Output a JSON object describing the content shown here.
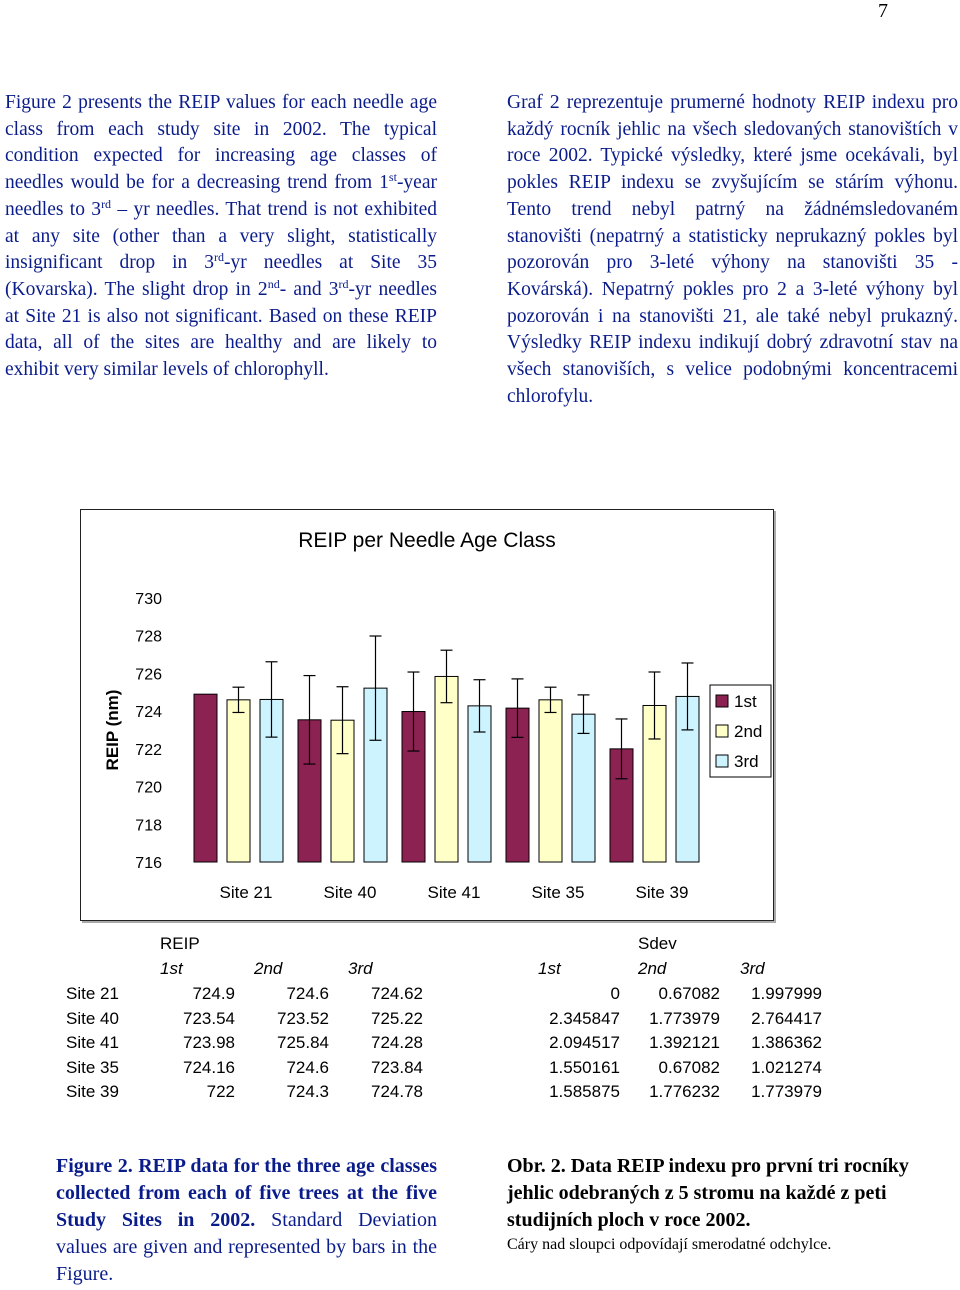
{
  "page_number": "7",
  "english_text": {
    "p1": "Figure 2 presents the REIP values for each needle age class from each study site in 2002. The typical condition expected for increasing age classes of needles would be for a decreasing trend from 1",
    "sup1": "st",
    "p2": "-year needles to 3",
    "sup2": "rd",
    "p3": " – yr needles. That trend is not exhibited at any site (other than a very slight, statistically insignificant drop in 3",
    "sup3": "rd",
    "p4": "-yr needles at Site 35 (Kovarska). The slight drop in 2",
    "sup4": "nd",
    "p5": "- and 3",
    "sup5": "rd",
    "p6": "-yr needles at Site 21 is also not significant. Based on these REIP data, all of the sites are healthy and are likely to exhibit very similar levels of chlorophyll."
  },
  "czech_text": "Graf 2 reprezentuje prumerné hodnoty REIP indexu pro každý rocník jehlic na všech sledovaných stanovištích v roce 2002. Typické výsledky, které jsme ocekávali, byl pokles REIP indexu se zvyšujícím se stárím výhonu. Tento trend nebyl patrný na žádnémsledovaném stanovišti (nepatrný a statisticky neprukazný pokles byl pozorován pro 3-leté výhony na stanovišti 35 - Kovárská). Nepatrný pokles pro 2 a 3-leté výhony byl pozorován i na stanovišti 21, ale také nebyl prukazný. Výsledky REIP indexu indikují dobrý zdravotní stav na všech stanoviších, s velice podobnými koncentracemi chlorofylu.",
  "chart_data": {
    "type": "bar",
    "title": "REIP per Needle Age Class",
    "ylabel": "REIP (nm)",
    "xlabel": "",
    "ylim": [
      716,
      730
    ],
    "yticks": [
      "730",
      "728",
      "726",
      "724",
      "722",
      "720",
      "718",
      "716"
    ],
    "categories": [
      "Site 21",
      "Site 40",
      "Site 41",
      "Site 35",
      "Site 39"
    ],
    "legend_position": "right",
    "series": [
      {
        "name": "1st",
        "color": "#8b2252",
        "values": [
          724.9,
          723.54,
          723.98,
          724.16,
          722
        ],
        "errors": [
          0,
          2.345847,
          2.094517,
          1.550161,
          1.585875
        ]
      },
      {
        "name": "2nd",
        "color": "#ffffc8",
        "values": [
          724.6,
          723.52,
          725.84,
          724.6,
          724.3
        ],
        "errors": [
          0.67082,
          1.773979,
          1.392121,
          0.67082,
          1.776232
        ]
      },
      {
        "name": "3rd",
        "color": "#cdf3ff",
        "values": [
          724.62,
          725.22,
          724.28,
          723.84,
          724.78
        ],
        "errors": [
          1.997999,
          2.764417,
          1.386362,
          1.021274,
          1.773979
        ]
      }
    ]
  },
  "table": {
    "reip_header": "REIP",
    "sdev_header": "Sdev",
    "col_labels": [
      "1st",
      "2nd",
      "3rd"
    ],
    "rows": [
      {
        "site": "Site 21",
        "reip": [
          "724.9",
          "724.6",
          "724.62"
        ],
        "sdev": [
          "0",
          "0.67082",
          "1.997999"
        ]
      },
      {
        "site": "Site 40",
        "reip": [
          "723.54",
          "723.52",
          "725.22"
        ],
        "sdev": [
          "2.345847",
          "1.773979",
          "2.764417"
        ]
      },
      {
        "site": "Site 41",
        "reip": [
          "723.98",
          "725.84",
          "724.28"
        ],
        "sdev": [
          "2.094517",
          "1.392121",
          "1.386362"
        ]
      },
      {
        "site": "Site 35",
        "reip": [
          "724.16",
          "724.6",
          "723.84"
        ],
        "sdev": [
          "1.550161",
          "0.67082",
          "1.021274"
        ]
      },
      {
        "site": "Site 39",
        "reip": [
          "722",
          "724.3",
          "724.78"
        ],
        "sdev": [
          "1.585875",
          "1.776232",
          "1.773979"
        ]
      }
    ]
  },
  "caption_en": {
    "bold": "Figure 2. REIP data for the three age classes collected from each of five trees at the five Study Sites in 2002.",
    "normal": " Standard Deviation values are given and represented by bars in the Figure."
  },
  "caption_cz": {
    "bold": "Obr. 2. Data REIP indexu pro první tri rocníky jehlic odebraných z 5 stromu na každé z peti studijních ploch v roce 2002.",
    "normal": "Cáry nad sloupci odpovídají smerodatné odchylce."
  }
}
